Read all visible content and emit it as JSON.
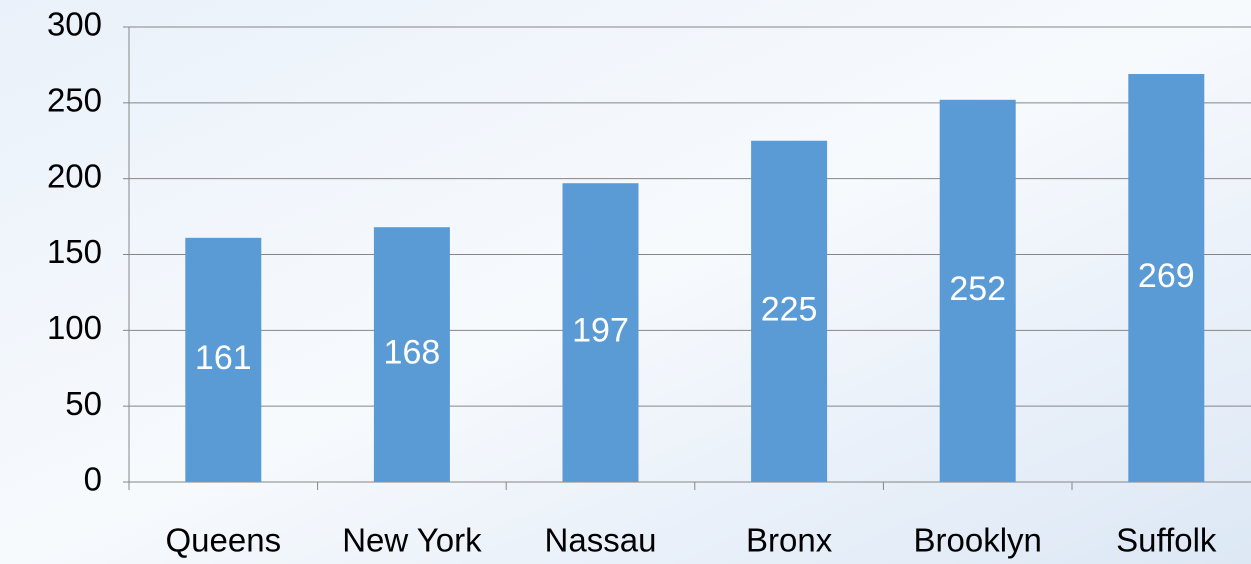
{
  "chart_data": {
    "type": "bar",
    "categories": [
      "Queens",
      "New York",
      "Nassau",
      "Bronx",
      "Brooklyn",
      "Suffolk"
    ],
    "values": [
      161,
      168,
      197,
      225,
      252,
      269
    ],
    "color": "#5b9bd5",
    "ylim": [
      0,
      300
    ],
    "yticks": [
      0,
      50,
      100,
      150,
      200,
      250,
      300
    ],
    "grid": true,
    "data_labels": true
  }
}
